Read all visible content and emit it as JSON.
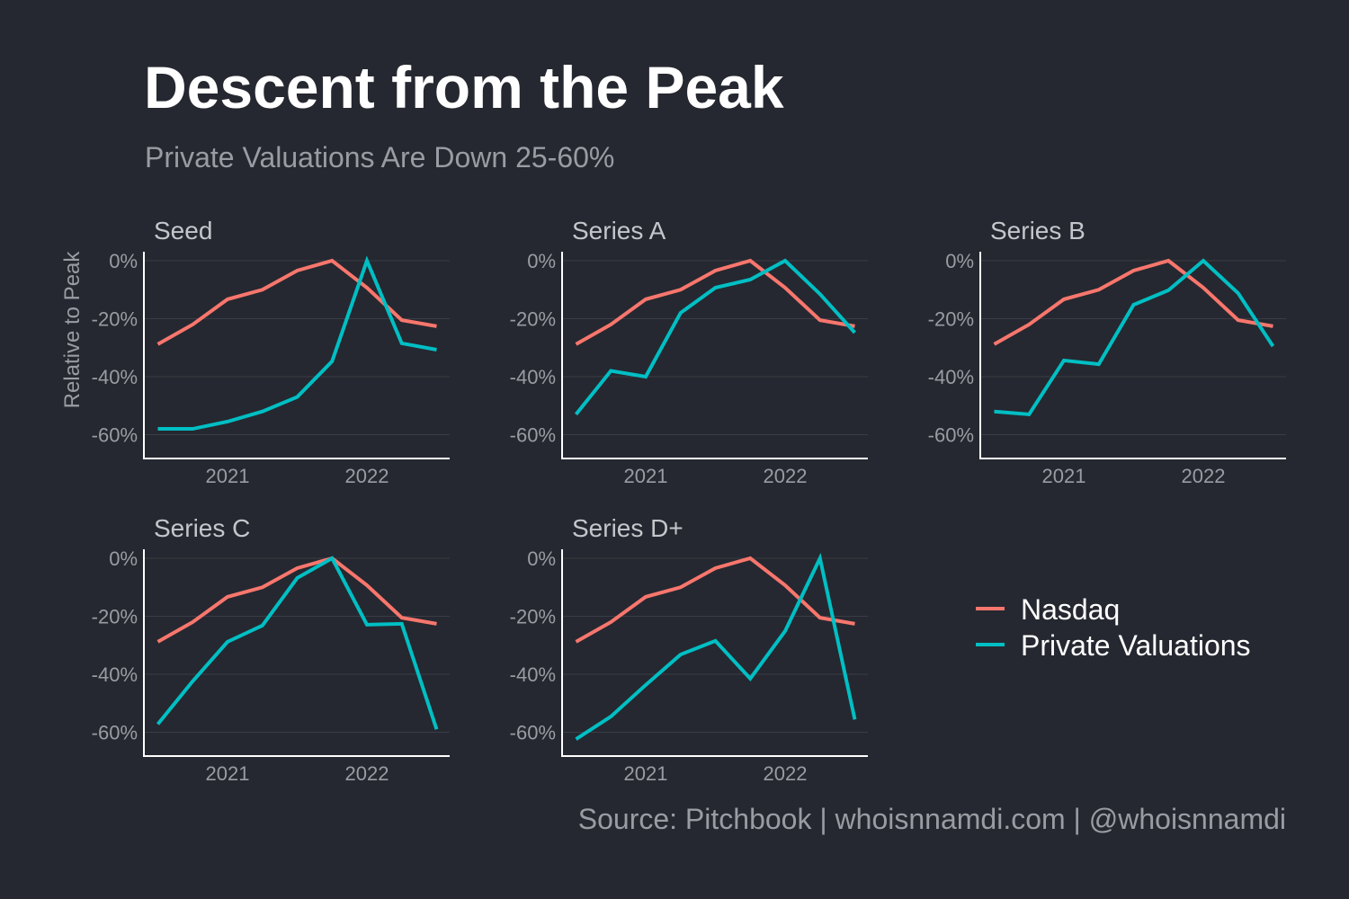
{
  "title": "Descent from the Peak",
  "subtitle": "Private Valuations Are Down 25-60%",
  "source": "Source: Pitchbook | whoisnnamdi.com | @whoisnnamdi",
  "colors": {
    "background": "#252830",
    "Nasdaq": "#f8766d",
    "Private Valuations": "#00bfc4",
    "grid": "#3a3d45",
    "axis": "#ffffff"
  },
  "legend": {
    "placement": "right, beside bottom row",
    "items": [
      "Nasdaq",
      "Private Valuations"
    ]
  },
  "chart_data": {
    "type": "line",
    "facets": true,
    "ylabel": "Relative to Peak",
    "ylim": [
      -68,
      3
    ],
    "yticks": [
      0,
      -20,
      -40,
      -60
    ],
    "ytick_labels": [
      "0%",
      "-20%",
      "-40%",
      "-60%"
    ],
    "xlim": [
      2020.4,
      2022.6
    ],
    "xticks": [
      2021,
      2022
    ],
    "xtick_labels": [
      "2021",
      "2022"
    ],
    "grid": "horizontal major",
    "x": [
      2020.5,
      2020.75,
      2021.0,
      2021.25,
      2021.5,
      2021.75,
      2022.0,
      2022.25,
      2022.5
    ],
    "panels": [
      {
        "title": "Seed",
        "series": [
          {
            "name": "Nasdaq",
            "values": [
              -28.8,
              -22,
              -13.3,
              -10,
              -3.4,
              0,
              -9.3,
              -20.5,
              -22.6
            ]
          },
          {
            "name": "Private Valuations",
            "values": [
              -58,
              -58,
              -55.5,
              -52,
              -47,
              -34.7,
              0,
              -28.5,
              -30.7
            ]
          }
        ]
      },
      {
        "title": "Series A",
        "series": [
          {
            "name": "Nasdaq",
            "values": [
              -28.8,
              -22,
              -13.3,
              -10,
              -3.4,
              0,
              -9.3,
              -20.5,
              -22.6
            ]
          },
          {
            "name": "Private Valuations",
            "values": [
              -53,
              -38,
              -40,
              -18,
              -9.3,
              -6.5,
              0,
              -11.5,
              -24.8
            ]
          }
        ]
      },
      {
        "title": "Series B",
        "series": [
          {
            "name": "Nasdaq",
            "values": [
              -28.8,
              -22,
              -13.3,
              -10,
              -3.4,
              0,
              -9.3,
              -20.5,
              -22.6
            ]
          },
          {
            "name": "Private Valuations",
            "values": [
              -52,
              -53,
              -34.4,
              -35.7,
              -15.2,
              -10.2,
              0,
              -11.2,
              -29.5
            ]
          }
        ]
      },
      {
        "title": "Series C",
        "series": [
          {
            "name": "Nasdaq",
            "values": [
              -28.8,
              -22,
              -13.3,
              -10,
              -3.4,
              0,
              -9.3,
              -20.5,
              -22.6
            ]
          },
          {
            "name": "Private Valuations",
            "values": [
              -57.2,
              -42.4,
              -28.8,
              -23.2,
              -6.8,
              0,
              -22.9,
              -22.6,
              -59
            ]
          }
        ]
      },
      {
        "title": "Series D+",
        "series": [
          {
            "name": "Nasdaq",
            "values": [
              -28.8,
              -22,
              -13.3,
              -10,
              -3.4,
              0,
              -9.3,
              -20.5,
              -22.6
            ]
          },
          {
            "name": "Private Valuations",
            "values": [
              -62.4,
              -54.6,
              -43.7,
              -33.2,
              -28.5,
              -41.5,
              -25.1,
              0,
              -55.6
            ]
          }
        ]
      }
    ]
  }
}
